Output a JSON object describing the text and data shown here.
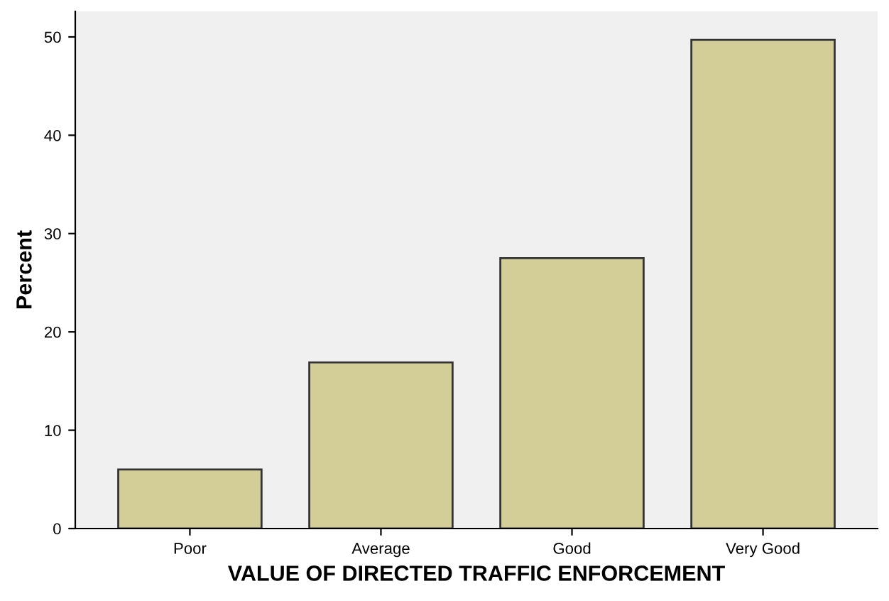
{
  "chart_data": {
    "type": "bar",
    "xlabel": "VALUE OF DIRECTED TRAFFIC ENFORCEMENT",
    "ylabel": "Percent",
    "categories": [
      "Poor",
      "Average",
      "Good",
      "Very Good"
    ],
    "values": [
      6.0,
      16.9,
      27.5,
      49.7
    ],
    "color": "#d3ce97",
    "ylim": [
      0,
      52.6
    ],
    "yticks": [
      0,
      10,
      20,
      30,
      40,
      50
    ],
    "grid": false
  }
}
